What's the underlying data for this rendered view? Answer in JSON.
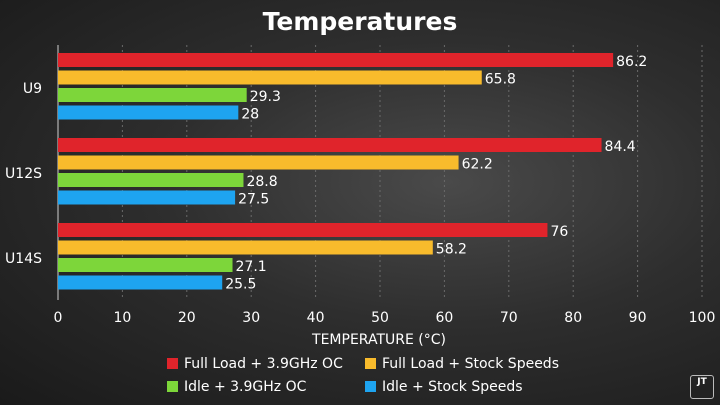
{
  "chart_data": {
    "type": "bar",
    "orientation": "horizontal",
    "title": "Temperatures",
    "xlabel": "TEMPERATURE (°C)",
    "ylabel": "",
    "xlim": [
      0,
      100
    ],
    "xticks": [
      0,
      10,
      20,
      30,
      40,
      50,
      60,
      70,
      80,
      90,
      100
    ],
    "categories": [
      "U9",
      "U12S",
      "U14S"
    ],
    "series": [
      {
        "name": "Full Load + 3.9GHz OC",
        "color": "#e0242b",
        "values": [
          86.2,
          84.4,
          76
        ]
      },
      {
        "name": "Full Load + Stock Speeds",
        "color": "#f8bb2c",
        "values": [
          65.8,
          62.2,
          58.2
        ]
      },
      {
        "name": "Idle + 3.9GHz OC",
        "color": "#7dd63a",
        "values": [
          29.3,
          28.8,
          27.1
        ]
      },
      {
        "name": "Idle + Stock Speeds",
        "color": "#1ea4f0",
        "values": [
          28,
          27.5,
          25.5
        ]
      }
    ],
    "data_labels": [
      [
        "86.2",
        "65.8",
        "29.3",
        "28"
      ],
      [
        "84.4",
        "62.2",
        "28.8",
        "27.5"
      ],
      [
        "76",
        "58.2",
        "27.1",
        "25.5"
      ]
    ],
    "grid": true,
    "legend_position": "bottom"
  },
  "watermark": {
    "text": "JT"
  }
}
